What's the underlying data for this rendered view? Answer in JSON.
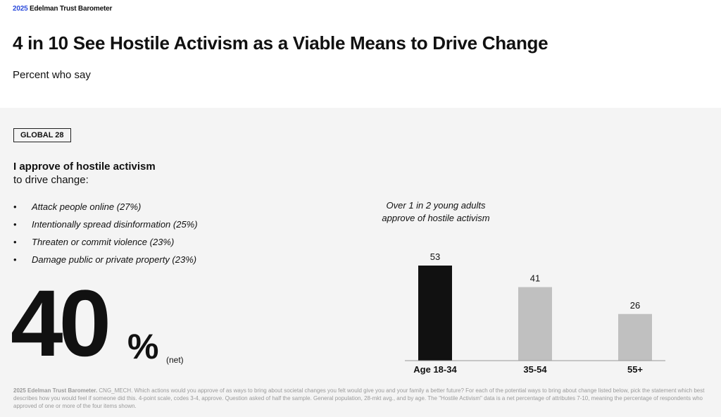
{
  "header": {
    "brand_year": "2025",
    "brand_name": "Edelman Trust Barometer",
    "title": "4 in 10 See Hostile Activism as a Viable Means to Drive Change",
    "subtitle": "Percent who say"
  },
  "panel": {
    "badge": "GLOBAL 28",
    "question_bold": "I approve of hostile activism",
    "question_rest": "to drive change:",
    "bullet_glyph": "•",
    "bullets": [
      "Attack people online (27%)",
      "Intentionally spread disinformation (25%)",
      "Threaten or commit violence (23%)",
      "Damage public or private property (23%)"
    ],
    "big_number": "40",
    "big_percent": "%",
    "big_note": "(net)",
    "callout_line1": "Over 1 in 2 young adults",
    "callout_line2": "approve of hostile activism"
  },
  "chart_data": {
    "type": "bar",
    "categories": [
      "Age 18-34",
      "35-54",
      "55+"
    ],
    "values": [
      53,
      41,
      26
    ],
    "bar_colors": [
      "#111111",
      "#c0c0c0",
      "#c0c0c0"
    ],
    "ylim": [
      0,
      60
    ]
  },
  "footnote": {
    "source_bold": "2025 Edelman Trust Barometer.",
    "text": "CNG_MECH. Which actions would you approve of as ways to bring about societal changes you felt would give you and your family a better future? For each of the potential ways to bring about change listed below, pick the statement which best describes how you would feel if someone did this. 4-point scale, codes 3-4, approve. Question asked of half the sample. General population, 28-mkt avg., and by age. The \"Hostile Activism\" data is a net percentage of attributes 7-10, meaning the percentage of respondents who approved of one or more of the four items shown."
  }
}
